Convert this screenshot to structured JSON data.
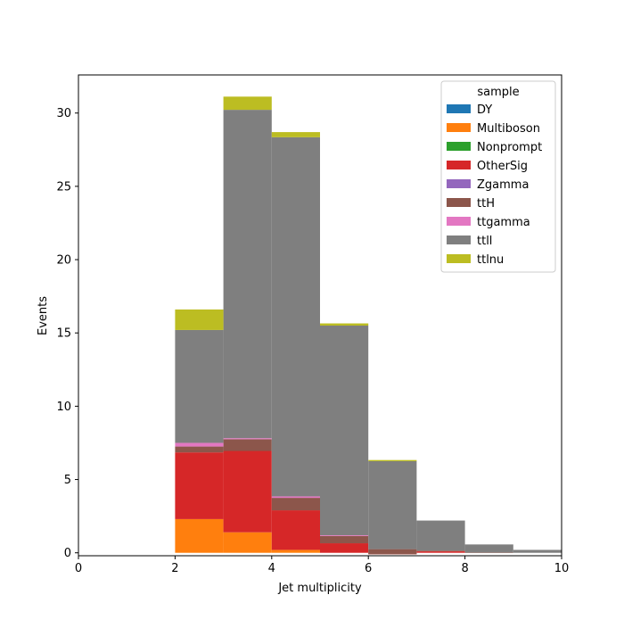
{
  "chart_data": {
    "type": "bar",
    "stacked": true,
    "histogram": true,
    "title": "",
    "xlabel": "Jet multiplicity",
    "ylabel": "Events",
    "xlim": [
      0,
      10
    ],
    "ylim": [
      -0.2,
      32.6
    ],
    "xticks": [
      0,
      2,
      4,
      6,
      8,
      10
    ],
    "yticks": [
      0,
      5,
      10,
      15,
      20,
      25,
      30
    ],
    "bin_edges": [
      0,
      1,
      2,
      3,
      4,
      5,
      6,
      7,
      8,
      9,
      10
    ],
    "grid": false,
    "legend": {
      "title": "sample",
      "position": "top-right"
    },
    "series": [
      {
        "name": "DY",
        "color": "#1f77b4",
        "values": [
          0,
          0,
          0,
          0,
          0,
          0,
          0,
          0,
          0,
          0
        ]
      },
      {
        "name": "Multiboson",
        "color": "#ff7f0e",
        "values": [
          0,
          0,
          2.3,
          1.4,
          0.2,
          0,
          0,
          0,
          0,
          0
        ]
      },
      {
        "name": "Nonprompt",
        "color": "#2ca02c",
        "values": [
          0,
          0,
          0,
          0,
          0,
          0,
          0,
          0,
          0,
          0
        ]
      },
      {
        "name": "OtherSig",
        "color": "#d62728",
        "values": [
          0,
          0,
          4.55,
          5.55,
          2.7,
          0.65,
          -0.1,
          0.1,
          0,
          0
        ]
      },
      {
        "name": "Zgamma",
        "color": "#9467bd",
        "values": [
          0,
          0,
          0,
          0,
          0,
          0,
          0,
          0,
          0,
          0
        ]
      },
      {
        "name": "ttH",
        "color": "#8c564b",
        "values": [
          0,
          0,
          0.4,
          0.8,
          0.85,
          0.5,
          0.35,
          0.05,
          0.02,
          0
        ]
      },
      {
        "name": "ttgamma",
        "color": "#e377c2",
        "values": [
          0,
          0,
          0.25,
          0.07,
          0.1,
          0.05,
          0,
          0,
          0,
          0
        ]
      },
      {
        "name": "ttll",
        "color": "#7f7f7f",
        "values": [
          0,
          0,
          7.7,
          22.4,
          24.5,
          14.3,
          6.0,
          2.05,
          0.55,
          0.2
        ]
      },
      {
        "name": "ttlnu",
        "color": "#bcbd22",
        "values": [
          0,
          0,
          1.4,
          0.9,
          0.35,
          0.15,
          0.08,
          0,
          0,
          0
        ]
      }
    ]
  }
}
